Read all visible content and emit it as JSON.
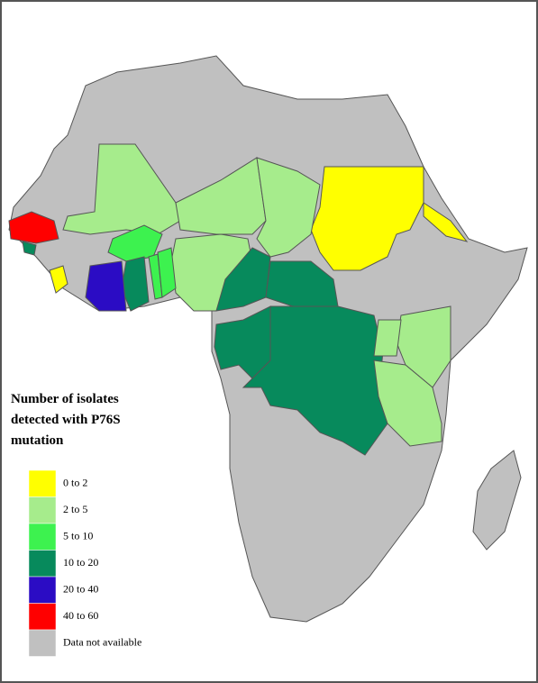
{
  "legend": {
    "title": [
      "Number of isolates",
      "detected with P76S",
      "mutation"
    ],
    "items": [
      {
        "label": "0 to 2",
        "color": "#ffff00"
      },
      {
        "label": "2 to 5",
        "color": "#a6ec8c"
      },
      {
        "label": "5 to 10",
        "color": "#3df24f"
      },
      {
        "label": "10 to 20",
        "color": "#078a5c"
      },
      {
        "label": "20 to 40",
        "color": "#2b0cc4"
      },
      {
        "label": "40 to 60",
        "color": "#ff0000"
      },
      {
        "label": "Data not available",
        "color": "#c0c0c0"
      }
    ]
  }
}
